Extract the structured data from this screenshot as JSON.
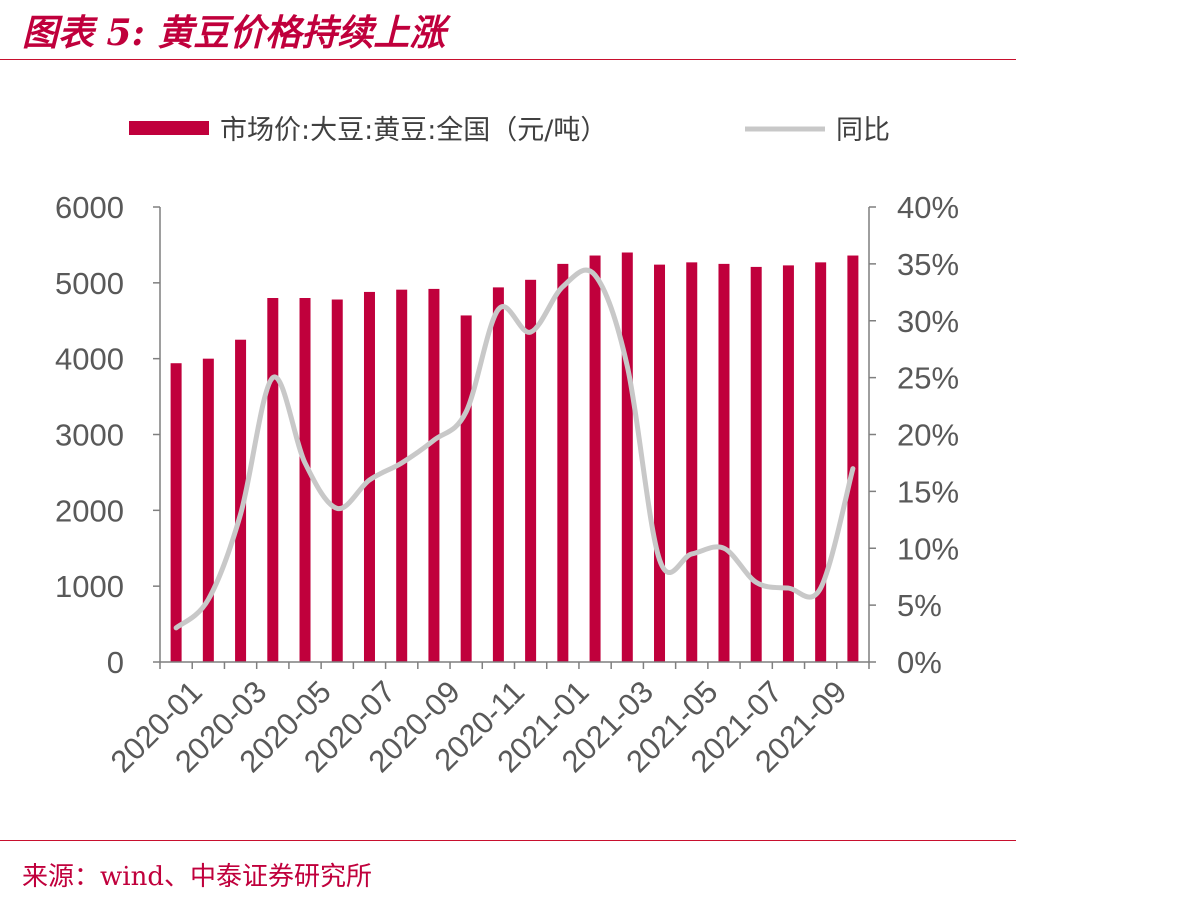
{
  "figure": {
    "title": "图表 5:  黄豆价格持续上涨",
    "source": "来源：wind、中泰证券研究所"
  },
  "colors": {
    "accent": "#c8102e",
    "bar": "#c0003c",
    "line": "#c8c8c8",
    "axis": "#7f7f7f"
  },
  "chart_data": {
    "type": "bar",
    "title": "",
    "xlabel": "",
    "ylabel": "",
    "categories": [
      "2020-01",
      "2020-02",
      "2020-03",
      "2020-04",
      "2020-05",
      "2020-06",
      "2020-07",
      "2020-08",
      "2020-09",
      "2020-10",
      "2020-11",
      "2020-12",
      "2021-01",
      "2021-02",
      "2021-03",
      "2021-04",
      "2021-05",
      "2021-06",
      "2021-07",
      "2021-08",
      "2021-09",
      "2021-10"
    ],
    "x_tick_labels": [
      "2020-01",
      "2020-03",
      "2020-05",
      "2020-07",
      "2020-09",
      "2020-11",
      "2021-01",
      "2021-03",
      "2021-05",
      "2021-07",
      "2021-09"
    ],
    "series": [
      {
        "name": "市场价:大豆:黄豆:全国（元/吨）",
        "type": "bar",
        "axis": "left",
        "values": [
          3940,
          4000,
          4250,
          4800,
          4800,
          4780,
          4880,
          4910,
          4920,
          4570,
          4940,
          5040,
          5250,
          5360,
          5400,
          5240,
          5270,
          5250,
          5210,
          5230,
          5270,
          5360
        ]
      },
      {
        "name": "同比",
        "type": "line",
        "axis": "right",
        "values": [
          3.0,
          5.5,
          13.0,
          25.0,
          17.5,
          13.5,
          16.0,
          17.5,
          19.5,
          22.0,
          31.0,
          29.0,
          33.0,
          34.0,
          26.0,
          9.0,
          9.5,
          10.0,
          7.0,
          6.5,
          6.5,
          17.0
        ]
      }
    ],
    "y_left": {
      "min": 0,
      "max": 6000,
      "ticks": [
        "0",
        "1000",
        "2000",
        "3000",
        "4000",
        "5000",
        "6000"
      ]
    },
    "y_right": {
      "min": 0,
      "max": 40,
      "ticks": [
        "0%",
        "5%",
        "10%",
        "15%",
        "20%",
        "25%",
        "30%",
        "35%",
        "40%"
      ]
    },
    "grid": false,
    "legend": "top"
  }
}
